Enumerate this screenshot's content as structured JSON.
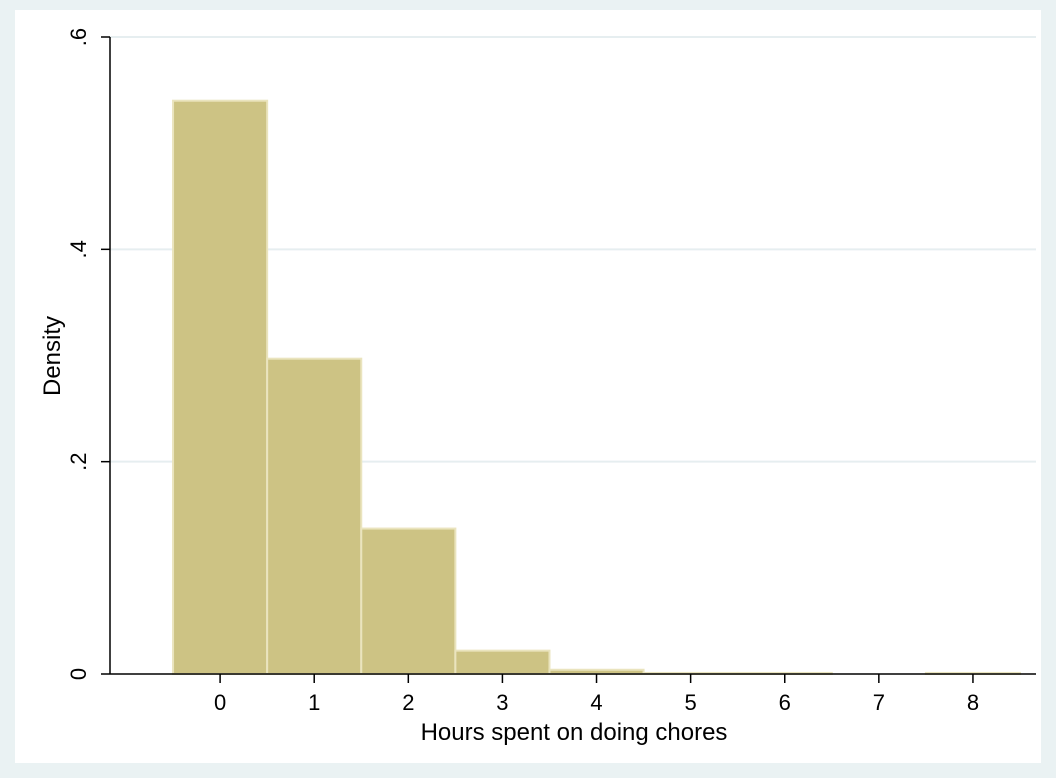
{
  "chart_data": {
    "type": "bar",
    "subtype": "histogram",
    "title": "",
    "xlabel": "Hours spent on doing chores",
    "ylabel": "Density",
    "bins": [
      {
        "start": -0.5,
        "end": 0.5,
        "density": 0.54
      },
      {
        "start": 0.5,
        "end": 1.5,
        "density": 0.297
      },
      {
        "start": 1.5,
        "end": 2.5,
        "density": 0.137
      },
      {
        "start": 2.5,
        "end": 3.5,
        "density": 0.022
      },
      {
        "start": 3.5,
        "end": 4.5,
        "density": 0.004
      },
      {
        "start": 4.5,
        "end": 5.5,
        "density": 0.001
      },
      {
        "start": 5.5,
        "end": 6.5,
        "density": 0.001
      },
      {
        "start": 6.5,
        "end": 7.5,
        "density": 0.0
      },
      {
        "start": 7.5,
        "end": 8.5,
        "density": 0.001
      }
    ],
    "xticks": [
      {
        "value": 0,
        "label": "0"
      },
      {
        "value": 1,
        "label": "1"
      },
      {
        "value": 2,
        "label": "2"
      },
      {
        "value": 3,
        "label": "3"
      },
      {
        "value": 4,
        "label": "4"
      },
      {
        "value": 5,
        "label": "5"
      },
      {
        "value": 6,
        "label": "6"
      },
      {
        "value": 7,
        "label": "7"
      },
      {
        "value": 8,
        "label": "8"
      }
    ],
    "yticks": [
      {
        "value": 0,
        "label": "0"
      },
      {
        "value": 0.2,
        "label": ".2"
      },
      {
        "value": 0.4,
        "label": ".4"
      },
      {
        "value": 0.6,
        "label": ".6"
      }
    ],
    "xlim": [
      -1.17,
      8.67
    ],
    "ylim": [
      0,
      0.6
    ],
    "grid": true,
    "colors": {
      "background": "#eaf2f3",
      "plot_background": "#ffffff",
      "bar_fill": "#cdc384",
      "bar_edge": "#eae4be",
      "grid": "#e6eef0",
      "axis": "#000000"
    }
  }
}
